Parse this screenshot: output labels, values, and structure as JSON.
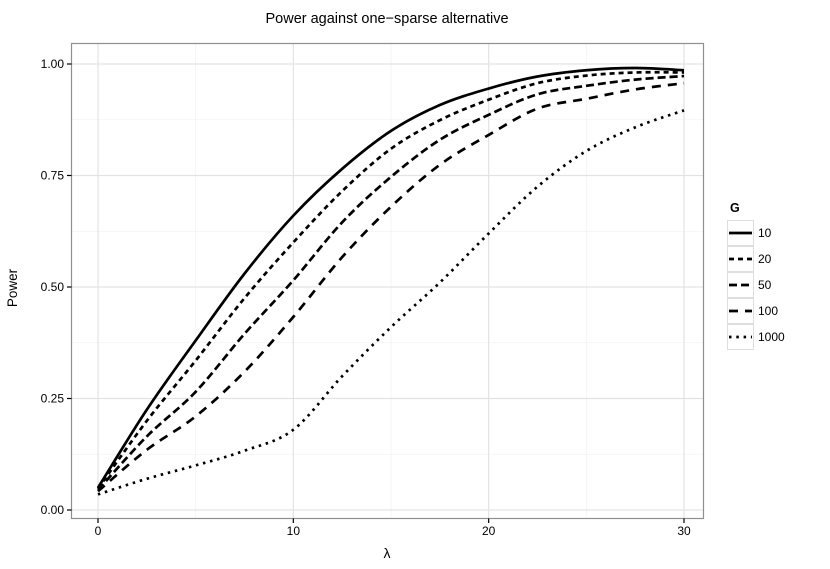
{
  "chart_data": {
    "type": "line",
    "title": "Power against one−sparse alternative",
    "xlabel": "λ",
    "ylabel": "Power",
    "legend_title": "G",
    "legend_position": "right",
    "grid": true,
    "xlim": [
      -1.4,
      31
    ],
    "ylim": [
      0,
      1.0
    ],
    "x_ticks": {
      "values": [
        0,
        10,
        20,
        30
      ],
      "labels": [
        "0",
        "10",
        "20",
        "30"
      ]
    },
    "y_ticks": {
      "values": [
        0,
        0.25,
        0.5,
        0.75,
        1.0
      ],
      "labels": [
        "0.00",
        "0.25",
        "0.50",
        "0.75",
        "1.00"
      ]
    },
    "x_minor": [
      5,
      15,
      25
    ],
    "y_minor": [
      0.125,
      0.375,
      0.625,
      0.875
    ],
    "x": [
      0,
      2.5,
      5,
      7.5,
      10,
      12.5,
      15,
      17.5,
      20,
      22.5,
      25,
      27.5,
      30
    ],
    "series": [
      {
        "name": "10",
        "linetype": "solid",
        "dash": "",
        "values": [
          0.05,
          0.225,
          0.38,
          0.53,
          0.66,
          0.765,
          0.85,
          0.908,
          0.945,
          0.972,
          0.986,
          0.991,
          0.986
        ]
      },
      {
        "name": "20",
        "linetype": "dashed",
        "dash": "5,4",
        "values": [
          0.048,
          0.2,
          0.335,
          0.475,
          0.6,
          0.715,
          0.81,
          0.874,
          0.92,
          0.957,
          0.974,
          0.981,
          0.981
        ]
      },
      {
        "name": "50",
        "linetype": "dash42",
        "dash": "8,4",
        "values": [
          0.045,
          0.165,
          0.265,
          0.395,
          0.515,
          0.645,
          0.747,
          0.83,
          0.886,
          0.932,
          0.951,
          0.965,
          0.973
        ]
      },
      {
        "name": "100",
        "linetype": "longdash",
        "dash": "9,7",
        "values": [
          0.042,
          0.135,
          0.21,
          0.31,
          0.433,
          0.567,
          0.68,
          0.774,
          0.841,
          0.9,
          0.922,
          0.943,
          0.957
        ]
      },
      {
        "name": "1000",
        "linetype": "dotted",
        "dash": "2.5,4.8",
        "values": [
          0.035,
          0.07,
          0.1,
          0.133,
          0.18,
          0.3,
          0.41,
          0.51,
          0.62,
          0.725,
          0.805,
          0.858,
          0.896
        ]
      }
    ],
    "colors": {
      "line": "#000000",
      "grid_major": "#e3e3e3",
      "grid_minor": "#f2f2f2",
      "panel_border": "#8f8f8f",
      "background": "#ffffff",
      "text": "#000000"
    }
  }
}
